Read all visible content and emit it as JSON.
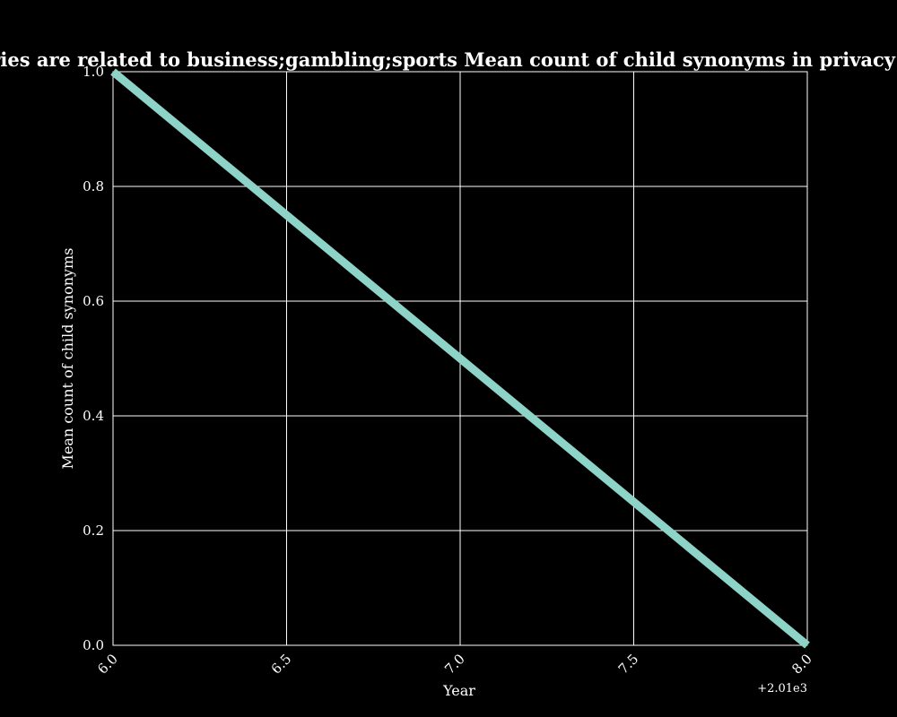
{
  "chart_data": {
    "type": "line",
    "title": "When categories are related to business;gambling;sports Mean count of child synonyms in privacy policies by year",
    "xlabel": "Year",
    "ylabel": "Mean count of child synonyms",
    "x_offset_label": "+2.01e3",
    "xlim": [
      6.0,
      8.0
    ],
    "ylim": [
      0.0,
      1.0
    ],
    "x_ticks": [
      "6.0",
      "6.5",
      "7.0",
      "7.5",
      "8.0"
    ],
    "y_ticks": [
      "0.0",
      "0.2",
      "0.4",
      "0.6",
      "0.8",
      "1.0"
    ],
    "grid": true,
    "legend": false,
    "series": [
      {
        "x": [
          6.0,
          8.0
        ],
        "y": [
          1.0,
          0.0
        ],
        "color": "#8dd3c7"
      }
    ]
  },
  "colors": {
    "background": "#000000",
    "grid": "#ffffff",
    "text": "#ffffff"
  }
}
